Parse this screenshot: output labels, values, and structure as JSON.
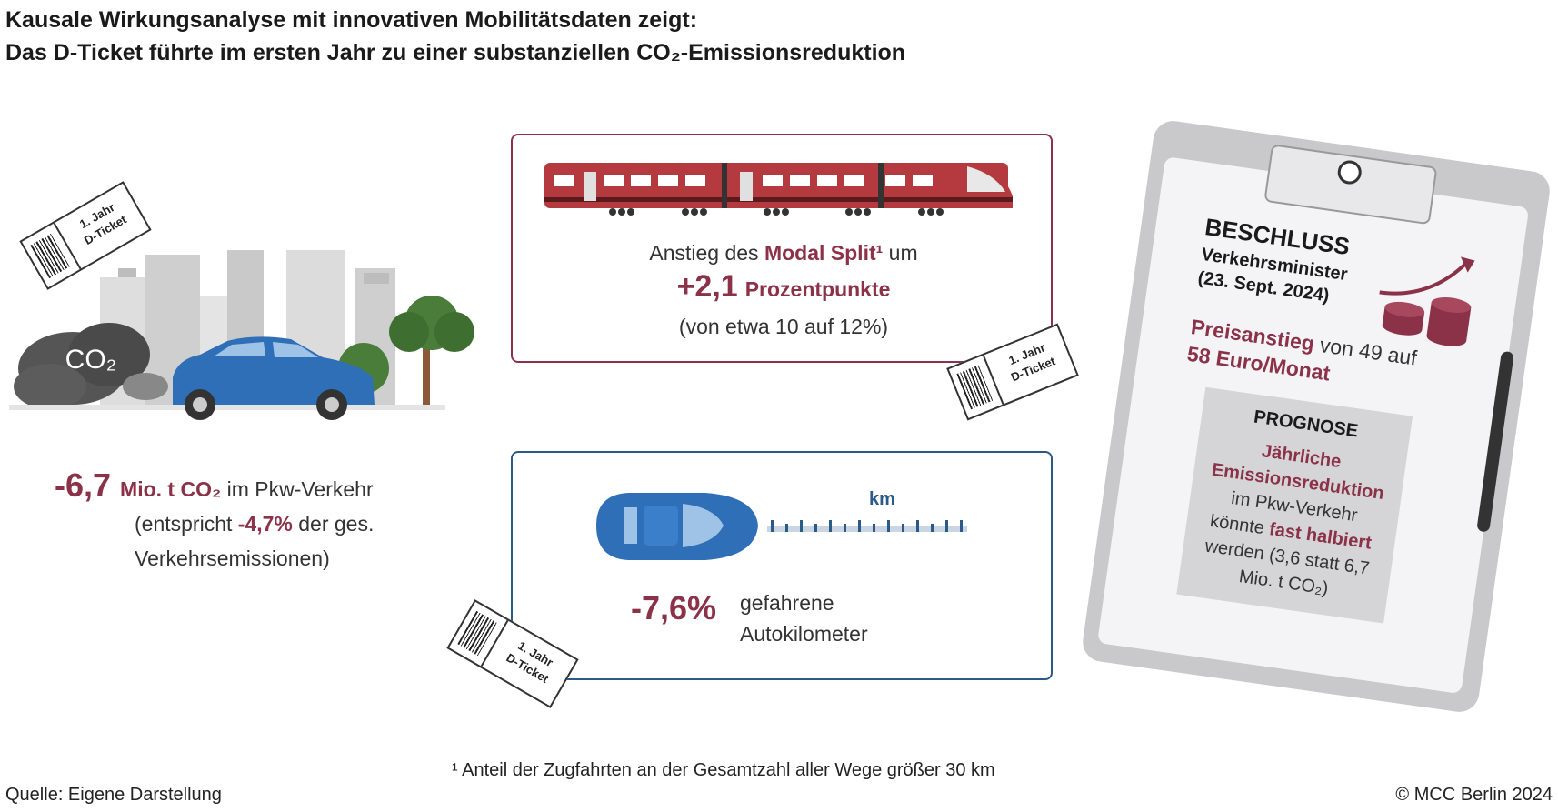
{
  "title": {
    "line1": "Kausale Wirkungsanalyse mit innovativen Mobilitätsdaten zeigt:",
    "line2": "Das D-Ticket führte im ersten Jahr zu einer substanziellen CO₂-Emissionsreduktion"
  },
  "ticket": {
    "line1": "1. Jahr",
    "line2": "D-Ticket"
  },
  "co2_cloud": {
    "label": "CO₂"
  },
  "left_stat": {
    "value": "-6,7",
    "unit": "Mio. t CO₂",
    "rest": " im Pkw-Verkehr",
    "line2_pre": "(entspricht ",
    "line2_value": "-4,7%",
    "line2_post": " der ges.",
    "line3": "Verkehrsemissionen)"
  },
  "modal_split": {
    "pre": "Anstieg des ",
    "highlight": "Modal Split¹",
    "post": " um",
    "value": "+2,1",
    "unit": "Prozentpunkte",
    "note": "(von etwa 10 auf 12%)"
  },
  "km": {
    "label": "km",
    "value": "-7,6%",
    "text1": "gefahrene",
    "text2": "Autokilometer"
  },
  "clipboard": {
    "heading": "BESCHLUSS",
    "sub1": "Verkehrsminister",
    "sub2": "(23. Sept. 2024)",
    "price_highlight": "Preisanstieg",
    "price_rest": " von 49 auf",
    "price_value": "58 Euro/Monat",
    "prognose_title": "PROGNOSE",
    "prognose_l1": "Jährliche",
    "prognose_l2": "Emissionsreduktion",
    "prognose_l3": "im Pkw-Verkehr",
    "prognose_l4_pre": "könnte ",
    "prognose_l4_hl": "fast halbiert",
    "prognose_l5": "werden (3,6 statt 6,7",
    "prognose_l6": "Mio. t CO₂)"
  },
  "footnote": "¹ Anteil der Zugfahrten an der Gesamtzahl aller Wege größer 30 km",
  "source": "Quelle: Eigene Darstellung",
  "copyright": "© MCC Berlin 2024",
  "colors": {
    "accent": "#8b3148",
    "blue": "#2c5a86",
    "car": "#2f6fb8",
    "train": "#b53a3f"
  }
}
